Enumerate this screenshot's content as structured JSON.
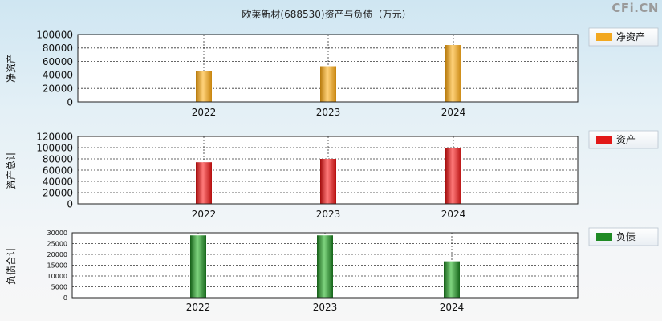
{
  "title": "欧莱新材(688530)资产与负债（万元）",
  "watermark": "CFi.CN",
  "colors": {
    "gold": "#f2a820",
    "red": "#e21818",
    "green": "#1f8a24"
  },
  "chart_data": [
    {
      "type": "bar",
      "ylabel": "净资产",
      "legend": "净资产",
      "color": "gold",
      "categories": [
        "2022",
        "2023",
        "2024"
      ],
      "values": [
        46000,
        53000,
        84500
      ],
      "ylim": [
        0,
        100000
      ],
      "yticks": [
        "100000",
        "80000",
        "60000",
        "40000",
        "20000",
        "0"
      ]
    },
    {
      "type": "bar",
      "ylabel": "资产总计",
      "legend": "资产",
      "color": "red",
      "categories": [
        "2022",
        "2023",
        "2024"
      ],
      "values": [
        74000,
        80000,
        100000
      ],
      "ylim": [
        0,
        120000
      ],
      "yticks": [
        "120000",
        "100000",
        "80000",
        "60000",
        "40000",
        "20000",
        "0"
      ]
    },
    {
      "type": "bar",
      "ylabel": "负债合计",
      "legend": "负债",
      "color": "green",
      "categories": [
        "2022",
        "2023",
        "2024"
      ],
      "values": [
        28800,
        28800,
        16800
      ],
      "ylim": [
        0,
        30000
      ],
      "yticks": [
        "30000",
        "25000",
        "20000",
        "15000",
        "10000",
        "5000",
        "0"
      ]
    }
  ]
}
